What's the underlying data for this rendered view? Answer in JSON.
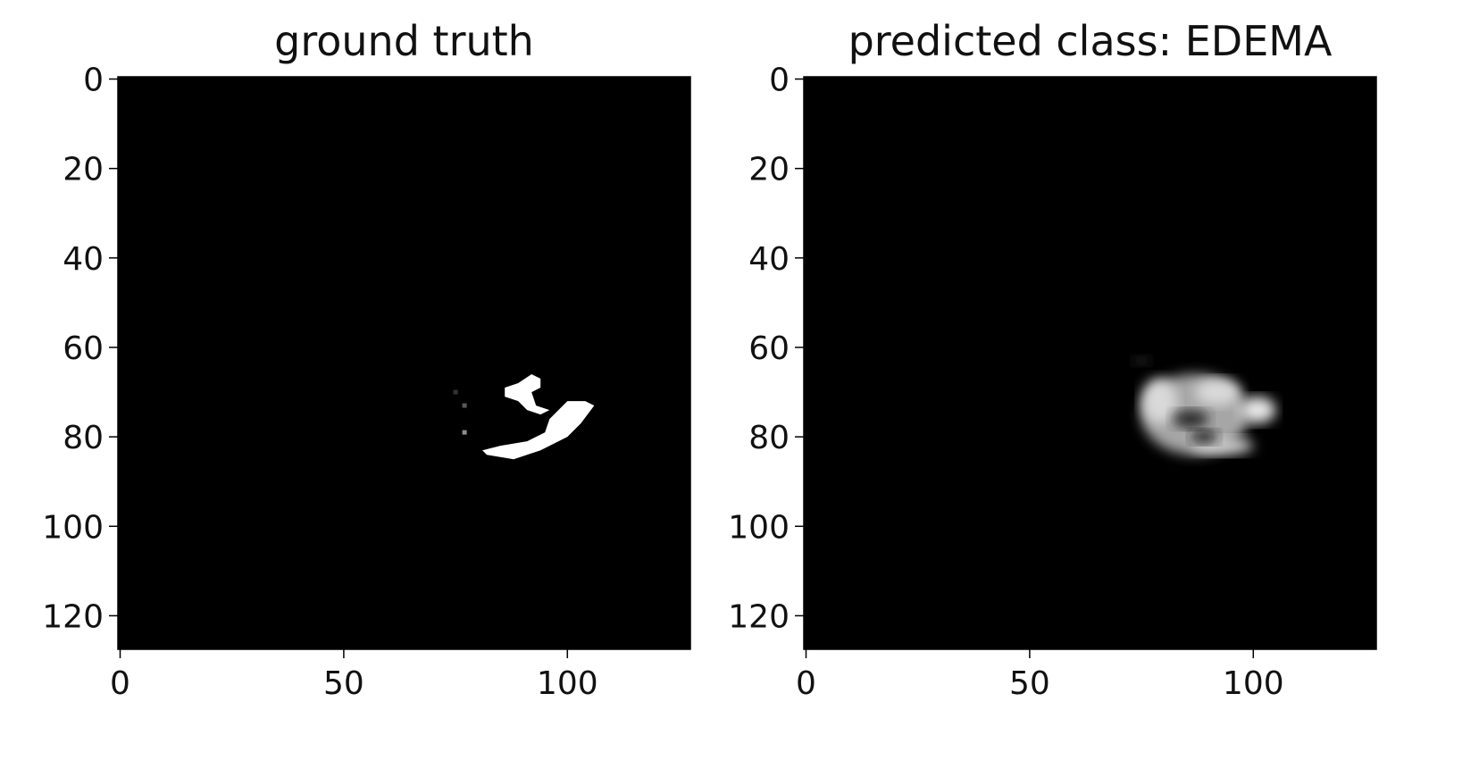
{
  "chart_data": [
    {
      "type": "heatmap",
      "title": "ground truth",
      "xlabel": "",
      "ylabel": "",
      "xlim": [
        0,
        128
      ],
      "ylim": [
        128,
        0
      ],
      "xticks": [
        0,
        50,
        100
      ],
      "yticks": [
        0,
        20,
        40,
        60,
        80,
        100,
        120
      ],
      "colormap": "gray",
      "grid": false,
      "image_shape": [
        128,
        128
      ],
      "background_value": 0,
      "regions": [
        {
          "shape": "polygon",
          "value": 1.0,
          "points": [
            [
              82,
              84
            ],
            [
              88,
              85
            ],
            [
              94,
              83
            ],
            [
              100,
              80
            ],
            [
              103,
              77
            ],
            [
              106,
              73
            ],
            [
              104,
              72
            ],
            [
              100,
              72
            ],
            [
              98,
              74
            ],
            [
              96,
              76
            ],
            [
              95,
              79
            ],
            [
              91,
              81
            ],
            [
              85,
              82
            ],
            [
              81,
              83
            ]
          ]
        },
        {
          "shape": "polygon",
          "value": 1.0,
          "points": [
            [
              86,
              69
            ],
            [
              89,
              68
            ],
            [
              92,
              66
            ],
            [
              94,
              67
            ],
            [
              94,
              69
            ],
            [
              92,
              70
            ],
            [
              93,
              73
            ],
            [
              96,
              74
            ],
            [
              94,
              75
            ],
            [
              91,
              74
            ],
            [
              89,
              72
            ],
            [
              86,
              71
            ]
          ]
        },
        {
          "shape": "point",
          "value": 0.55,
          "x": 77,
          "y": 79
        },
        {
          "shape": "point",
          "value": 0.35,
          "x": 77,
          "y": 73
        },
        {
          "shape": "point",
          "value": 0.2,
          "x": 75,
          "y": 70
        }
      ]
    },
    {
      "type": "heatmap",
      "title": "predicted class: EDEMA",
      "xlabel": "",
      "ylabel": "",
      "xlim": [
        0,
        128
      ],
      "ylim": [
        128,
        0
      ],
      "xticks": [
        0,
        50,
        100
      ],
      "yticks": [
        0,
        20,
        40,
        60,
        80,
        100,
        120
      ],
      "colormap": "gray",
      "grid": false,
      "image_shape": [
        128,
        128
      ],
      "background_value": 0,
      "regions": [
        {
          "shape": "ellipse",
          "value": 0.65,
          "cx": 87,
          "cy": 75,
          "rx": 12,
          "ry": 9
        },
        {
          "shape": "ellipse",
          "value": 0.85,
          "cx": 79,
          "cy": 72,
          "rx": 4,
          "ry": 5
        },
        {
          "shape": "ellipse",
          "value": 0.85,
          "cx": 92,
          "cy": 70,
          "rx": 5,
          "ry": 3
        },
        {
          "shape": "ellipse",
          "value": 0.9,
          "cx": 101,
          "cy": 74,
          "rx": 4,
          "ry": 3
        },
        {
          "shape": "ellipse",
          "value": 0.8,
          "cx": 93,
          "cy": 82,
          "rx": 7,
          "ry": 2
        },
        {
          "shape": "ellipse",
          "value": 0.15,
          "cx": 86,
          "cy": 76,
          "rx": 4,
          "ry": 2
        },
        {
          "shape": "ellipse",
          "value": 0.1,
          "cx": 89,
          "cy": 80,
          "rx": 3,
          "ry": 1.5
        },
        {
          "shape": "ellipse",
          "value": 0.15,
          "cx": 75,
          "cy": 63,
          "rx": 2,
          "ry": 1
        }
      ]
    }
  ]
}
